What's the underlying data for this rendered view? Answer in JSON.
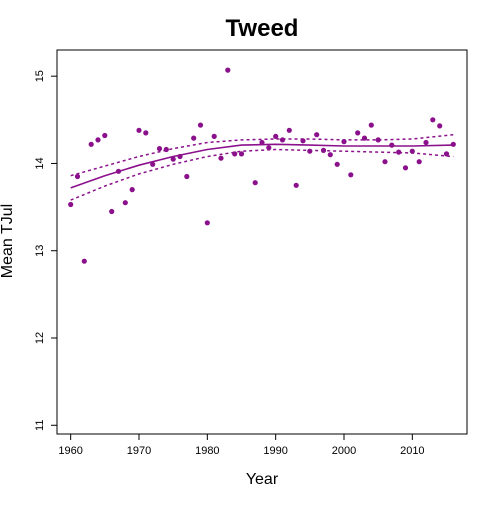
{
  "chart_data": {
    "type": "scatter",
    "title": "Tweed",
    "xlabel": "Year",
    "ylabel": "Mean TJul",
    "xlim": [
      1958,
      2018
    ],
    "ylim": [
      10.9,
      15.3
    ],
    "xticks": [
      1960,
      1970,
      1980,
      1990,
      2000,
      2010
    ],
    "yticks": [
      11,
      12,
      13,
      14,
      15
    ],
    "grid": false,
    "colors": {
      "points": "#8b108b",
      "fit": "#8b108b"
    },
    "points": [
      [
        1960,
        13.53
      ],
      [
        1961,
        13.85
      ],
      [
        1962,
        12.88
      ],
      [
        1963,
        14.22
      ],
      [
        1964,
        14.27
      ],
      [
        1965,
        14.32
      ],
      [
        1966,
        13.45
      ],
      [
        1967,
        13.91
      ],
      [
        1968,
        13.55
      ],
      [
        1969,
        13.7
      ],
      [
        1970,
        14.38
      ],
      [
        1971,
        14.35
      ],
      [
        1972,
        13.99
      ],
      [
        1973,
        14.17
      ],
      [
        1974,
        14.16
      ],
      [
        1975,
        14.05
      ],
      [
        1976,
        14.08
      ],
      [
        1977,
        13.85
      ],
      [
        1978,
        14.29
      ],
      [
        1979,
        14.44
      ],
      [
        1980,
        13.32
      ],
      [
        1981,
        14.31
      ],
      [
        1982,
        14.06
      ],
      [
        1983,
        15.07
      ],
      [
        1984,
        14.11
      ],
      [
        1985,
        14.11
      ],
      [
        1987,
        13.78
      ],
      [
        1988,
        14.24
      ],
      [
        1989,
        14.18
      ],
      [
        1990,
        14.31
      ],
      [
        1991,
        14.27
      ],
      [
        1992,
        14.38
      ],
      [
        1993,
        13.75
      ],
      [
        1994,
        14.26
      ],
      [
        1995,
        14.14
      ],
      [
        1996,
        14.33
      ],
      [
        1997,
        14.15
      ],
      [
        1998,
        14.1
      ],
      [
        1999,
        13.99
      ],
      [
        2000,
        14.25
      ],
      [
        2001,
        13.87
      ],
      [
        2002,
        14.35
      ],
      [
        2003,
        14.29
      ],
      [
        2004,
        14.44
      ],
      [
        2005,
        14.27
      ],
      [
        2006,
        14.02
      ],
      [
        2007,
        14.21
      ],
      [
        2008,
        14.13
      ],
      [
        2009,
        13.95
      ],
      [
        2010,
        14.14
      ],
      [
        2011,
        14.02
      ],
      [
        2012,
        14.24
      ],
      [
        2013,
        14.5
      ],
      [
        2014,
        14.43
      ],
      [
        2015,
        14.11
      ],
      [
        2016,
        14.22
      ]
    ],
    "fit": {
      "x": [
        1960,
        1965,
        1970,
        1975,
        1980,
        1985,
        1990,
        1995,
        2000,
        2005,
        2010,
        2016
      ],
      "y": [
        13.72,
        13.86,
        13.98,
        14.08,
        14.16,
        14.21,
        14.22,
        14.21,
        14.2,
        14.2,
        14.2,
        14.21
      ],
      "upper": [
        13.86,
        13.97,
        14.08,
        14.17,
        14.24,
        14.27,
        14.28,
        14.28,
        14.27,
        14.27,
        14.28,
        14.33
      ],
      "lower": [
        13.58,
        13.74,
        13.88,
        13.99,
        14.08,
        14.14,
        14.16,
        14.15,
        14.14,
        14.13,
        14.12,
        14.08
      ]
    }
  }
}
